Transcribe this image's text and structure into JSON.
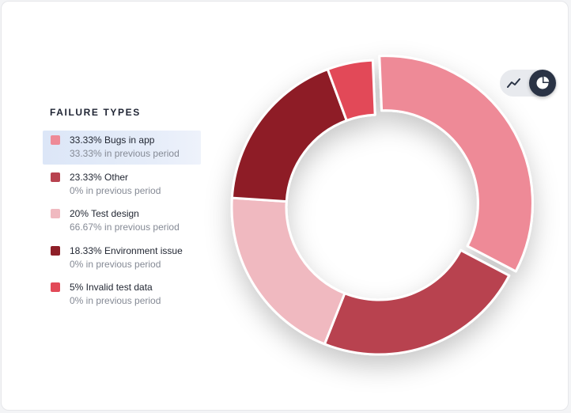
{
  "legend": {
    "title": "FAILURE TYPES",
    "items": [
      {
        "main": "33.33% Bugs in app",
        "sub": "33.33%  in previous period",
        "color": "#ee8a97"
      },
      {
        "main": "23.33% Other",
        "sub": "0%  in previous period",
        "color": "#b8424f"
      },
      {
        "main": "20% Test design",
        "sub": "66.67%  in previous period",
        "color": "#f0b9c0"
      },
      {
        "main": "18.33% Environment issue",
        "sub": "0%  in previous period",
        "color": "#8e1f28"
      },
      {
        "main": "5% Invalid test data",
        "sub": "0%  in previous period",
        "color": "#e24a58"
      }
    ]
  },
  "toggle": {
    "line_icon": "line-chart-icon",
    "pie_icon": "pie-chart-icon",
    "selected": "pie"
  },
  "chart_data": {
    "type": "pie",
    "title": "",
    "categories": [
      "Bugs in app",
      "Other",
      "Test design",
      "Environment issue",
      "Invalid test data"
    ],
    "values": [
      33.33,
      23.33,
      20,
      18.33,
      5
    ],
    "colors": [
      "#ee8a97",
      "#b8424f",
      "#f0b9c0",
      "#8e1f28",
      "#e24a58"
    ],
    "highlighted": "Bugs in app",
    "donut": true
  }
}
